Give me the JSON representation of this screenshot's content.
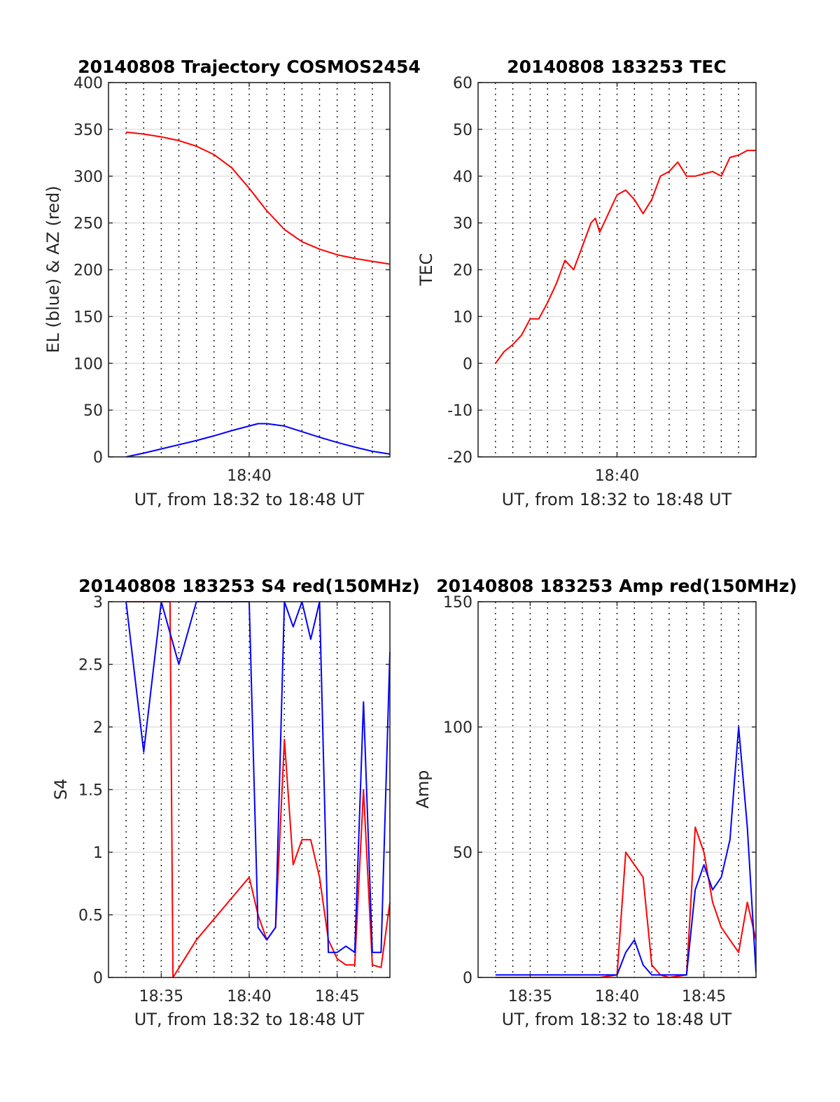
{
  "chart_data": [
    {
      "type": "line",
      "title": "20140808 Trajectory COSMOS2454",
      "xlabel": "UT, from 18:32 to 18:48 UT",
      "ylabel": "EL (blue) & AZ (red)",
      "xlim": [
        "18:32",
        "18:48"
      ],
      "ylim": [
        0,
        400
      ],
      "yticks": [
        "0",
        "50",
        "100",
        "150",
        "200",
        "250",
        "300",
        "350",
        "400"
      ],
      "xtick_labels": [
        {
          "x": "18:40",
          "label": "18:40"
        }
      ],
      "vertical_grid": [
        "18:33",
        "18:34",
        "18:35",
        "18:36",
        "18:37",
        "18:38",
        "18:39",
        "18:40",
        "18:41",
        "18:42",
        "18:43",
        "18:44",
        "18:45",
        "18:46",
        "18:47",
        "18:48"
      ],
      "grid": true,
      "series": [
        {
          "color": "#ff0000",
          "x": [
            "18:33",
            "18:34",
            "18:35",
            "18:36",
            "18:37",
            "18:38",
            "18:39",
            "18:40",
            "18:41",
            "18:42",
            "18:43",
            "18:44",
            "18:45",
            "18:46",
            "18:47",
            "18:48"
          ],
          "values": [
            347,
            345,
            342,
            338,
            332,
            323,
            309,
            287,
            263,
            243,
            230,
            222,
            216,
            212,
            209,
            206
          ]
        },
        {
          "color": "#0000ff",
          "x": [
            "18:33",
            "18:34",
            "18:35",
            "18:36",
            "18:37",
            "18:38",
            "18:39",
            "18:40",
            "18:40:30",
            "18:41",
            "18:42",
            "18:43",
            "18:44",
            "18:45",
            "18:46",
            "18:47",
            "18:48"
          ],
          "values": [
            0,
            4,
            8.5,
            13,
            17.5,
            22.5,
            28,
            33,
            35.5,
            35.5,
            33,
            27,
            21,
            15.5,
            10.5,
            6,
            3
          ]
        }
      ]
    },
    {
      "type": "line",
      "title": "20140808 183253 TEC",
      "xlabel": "UT, from 18:32 to 18:48 UT",
      "ylabel": "TEC",
      "xlim": [
        "18:32",
        "18:48"
      ],
      "ylim": [
        -20,
        60
      ],
      "yticks": [
        "-20",
        "-10",
        "0",
        "10",
        "20",
        "30",
        "40",
        "50",
        "60"
      ],
      "xtick_labels": [
        {
          "x": "18:40",
          "label": "18:40"
        }
      ],
      "vertical_grid": [
        "18:33",
        "18:34",
        "18:35",
        "18:36",
        "18:37",
        "18:38",
        "18:39",
        "18:40",
        "18:41",
        "18:42",
        "18:43",
        "18:44",
        "18:45",
        "18:46",
        "18:47",
        "18:48"
      ],
      "grid": true,
      "series": [
        {
          "color": "#ff0000",
          "x": [
            "18:33",
            "18:33:30",
            "18:34",
            "18:34:30",
            "18:35",
            "18:35:30",
            "18:36",
            "18:36:30",
            "18:37",
            "18:37:30",
            "18:38",
            "18:38:30",
            "18:38:45",
            "18:39",
            "18:39:30",
            "18:40",
            "18:40:30",
            "18:41",
            "18:41:30",
            "18:42",
            "18:42:30",
            "18:43",
            "18:43:30",
            "18:44",
            "18:44:30",
            "18:45",
            "18:45:30",
            "18:46",
            "18:46:30",
            "18:47",
            "18:47:30",
            "18:48"
          ],
          "values": [
            0,
            2.5,
            4,
            6,
            9.5,
            9.5,
            13,
            17,
            22,
            20,
            25,
            30,
            31,
            28,
            32,
            36,
            37,
            35,
            32,
            35,
            40,
            41,
            43,
            40,
            40,
            40.5,
            41,
            40,
            44,
            44.5,
            45.5,
            45.5
          ]
        }
      ]
    },
    {
      "type": "line",
      "title": "20140808 183253 S4 red(150MHz)",
      "xlabel": "UT, from 18:32 to 18:48 UT",
      "ylabel": "S4",
      "xlim": [
        "18:32",
        "18:48"
      ],
      "ylim": [
        0,
        3
      ],
      "yticks": [
        "0",
        "0.5",
        "1",
        "1.5",
        "2",
        "2.5",
        "3"
      ],
      "xtick_labels": [
        {
          "x": "18:35",
          "label": "18:35"
        },
        {
          "x": "18:40",
          "label": "18:40"
        },
        {
          "x": "18:45",
          "label": "18:45"
        }
      ],
      "vertical_grid": [
        "18:33",
        "18:34",
        "18:35",
        "18:36",
        "18:37",
        "18:38",
        "18:39",
        "18:40",
        "18:41",
        "18:42",
        "18:43",
        "18:44",
        "18:45",
        "18:46",
        "18:47",
        "18:48"
      ],
      "grid": true,
      "series": [
        {
          "color": "#ff0000",
          "x": [
            "18:33",
            "18:35:30",
            "18:35:40",
            "18:37",
            "18:40",
            "18:40:30",
            "18:41",
            "18:41:30",
            "18:42",
            "18:42:30",
            "18:43",
            "18:43:30",
            "18:44",
            "18:44:30",
            "18:45",
            "18:45:30",
            "18:46",
            "18:46:30",
            "18:47",
            "18:47:30",
            "18:48"
          ],
          "values": [
            3,
            3,
            0,
            0.3,
            0.8,
            0.5,
            0.3,
            0.4,
            1.9,
            0.9,
            1.1,
            1.1,
            0.8,
            0.3,
            0.15,
            0.1,
            0.1,
            1.5,
            0.1,
            0.08,
            0.6
          ]
        },
        {
          "color": "#0000ff",
          "x": [
            "18:33",
            "18:33:30",
            "18:34",
            "18:35",
            "18:36",
            "18:37",
            "18:38",
            "18:39",
            "18:40",
            "18:40:30",
            "18:41",
            "18:41:30",
            "18:42",
            "18:42:30",
            "18:43",
            "18:43:30",
            "18:44",
            "18:44:30",
            "18:45",
            "18:45:30",
            "18:46",
            "18:46:30",
            "18:47",
            "18:47:30",
            "18:48"
          ],
          "values": [
            3,
            2.4,
            1.8,
            3,
            2.5,
            3,
            3,
            3,
            3,
            0.4,
            0.3,
            0.4,
            3,
            2.8,
            3,
            2.7,
            3,
            0.2,
            0.2,
            0.25,
            0.2,
            2.2,
            0.2,
            0.2,
            2.6
          ]
        }
      ]
    },
    {
      "type": "line",
      "title": "20140808 183253 Amp red(150MHz)",
      "xlabel": "UT, from 18:32 to 18:48 UT",
      "ylabel": "Amp",
      "xlim": [
        "18:32",
        "18:48"
      ],
      "ylim": [
        0,
        150
      ],
      "yticks": [
        "0",
        "50",
        "100",
        "150"
      ],
      "xtick_labels": [
        {
          "x": "18:35",
          "label": "18:35"
        },
        {
          "x": "18:40",
          "label": "18:40"
        },
        {
          "x": "18:45",
          "label": "18:45"
        }
      ],
      "vertical_grid": [
        "18:33",
        "18:34",
        "18:35",
        "18:36",
        "18:37",
        "18:38",
        "18:39",
        "18:40",
        "18:41",
        "18:42",
        "18:43",
        "18:44",
        "18:45",
        "18:46",
        "18:47",
        "18:48"
      ],
      "grid": true,
      "series": [
        {
          "color": "#ff0000",
          "x": [
            "18:33",
            "18:39",
            "18:40",
            "18:40:30",
            "18:41",
            "18:41:30",
            "18:42",
            "18:42:30",
            "18:43",
            "18:44",
            "18:44:30",
            "18:45",
            "18:45:30",
            "18:46",
            "18:46:30",
            "18:47",
            "18:47:30",
            "18:48"
          ],
          "values": [
            0,
            0,
            1,
            50,
            45,
            40,
            5,
            1,
            0,
            1,
            60,
            50,
            30,
            20,
            15,
            10,
            30,
            15
          ]
        },
        {
          "color": "#0000ff",
          "x": [
            "18:33",
            "18:39",
            "18:40",
            "18:40:30",
            "18:41",
            "18:41:30",
            "18:42",
            "18:42:30",
            "18:43",
            "18:44",
            "18:44:30",
            "18:45",
            "18:45:30",
            "18:46",
            "18:46:30",
            "18:47",
            "18:47:30",
            "18:48"
          ],
          "values": [
            1,
            1,
            1,
            10,
            15,
            5,
            1,
            1,
            1,
            1,
            35,
            45,
            35,
            40,
            55,
            100,
            60,
            2
          ]
        }
      ]
    }
  ]
}
